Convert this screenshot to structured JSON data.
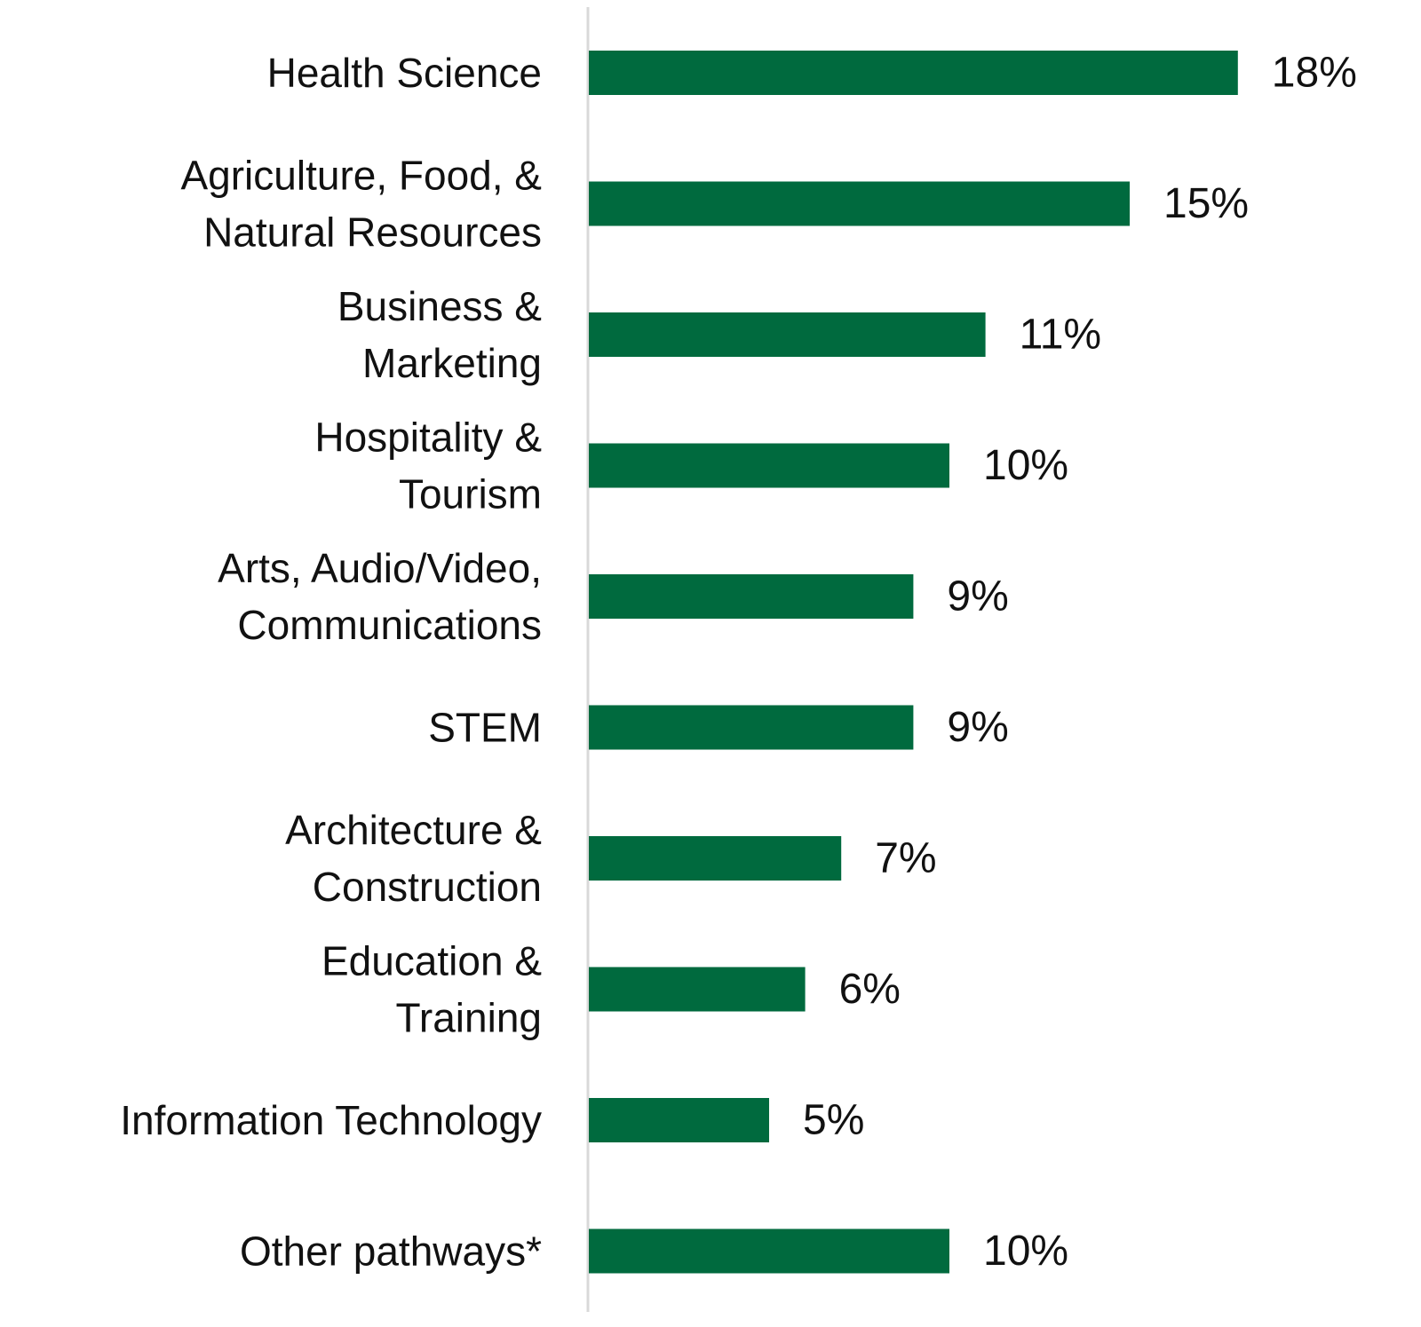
{
  "chart_data": {
    "type": "bar",
    "orientation": "horizontal",
    "categories": [
      [
        "Health Science"
      ],
      [
        "Agriculture, Food, &",
        "Natural Resources"
      ],
      [
        "Business &",
        "Marketing"
      ],
      [
        "Hospitality &",
        "Tourism"
      ],
      [
        "Arts, Audio/Video,",
        "Communications"
      ],
      [
        "STEM"
      ],
      [
        "Architecture &",
        "Construction"
      ],
      [
        "Education &",
        "Training"
      ],
      [
        "Information Technology"
      ],
      [
        "Other pathways*"
      ]
    ],
    "values": [
      18,
      15,
      11,
      10,
      9,
      9,
      7,
      6,
      5,
      10
    ],
    "value_labels": [
      "18%",
      "15%",
      "11%",
      "10%",
      "9%",
      "9%",
      "7%",
      "6%",
      "5%",
      "10%"
    ],
    "value_unit": "%",
    "xlim": [
      0,
      20
    ],
    "grid": false,
    "colors": {
      "bar": "#006a3e",
      "axis": "#d9d9d9"
    }
  }
}
